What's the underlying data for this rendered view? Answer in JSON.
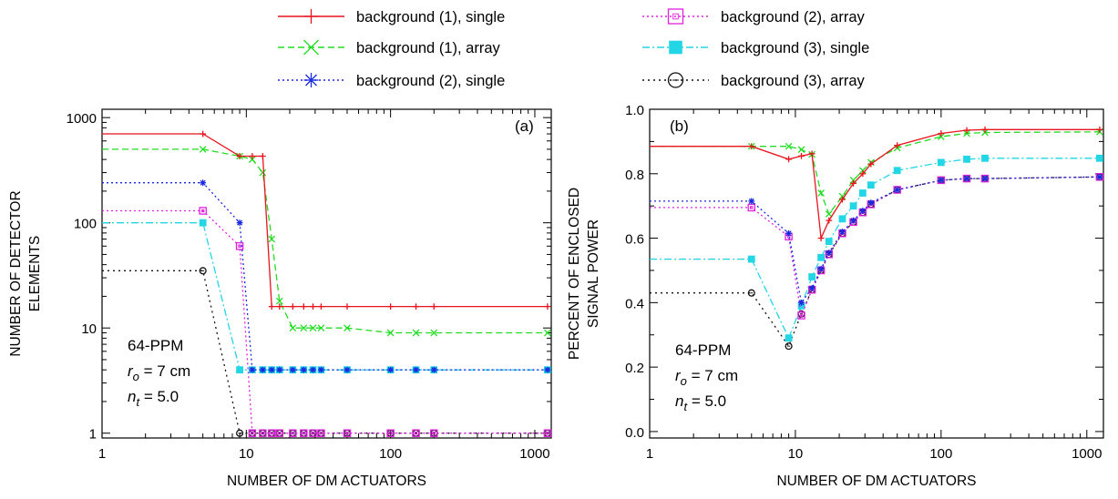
{
  "legend": [
    {
      "name": "background (1), single",
      "color": "#e8141e",
      "dash": "",
      "marker": "plus"
    },
    {
      "name": "background (1), array",
      "color": "#22dd22",
      "dash": "7,4",
      "marker": "x"
    },
    {
      "name": "background (2), single",
      "color": "#1a2ae0",
      "dash": "2,3",
      "marker": "star"
    },
    {
      "name": "background (2), array",
      "color": "#e020e0",
      "dash": "2,3",
      "marker": "square-open"
    },
    {
      "name": "background (3), single",
      "color": "#22d6e6",
      "dash": "8,3,2,3",
      "marker": "square-filled"
    },
    {
      "name": "background (3), array",
      "color": "#111111",
      "dash": "2,4",
      "marker": "circle-open"
    }
  ],
  "chart_data": [
    {
      "type": "line",
      "panel_label": "(a)",
      "xlabel": "NUMBER OF DM ACTUATORS",
      "ylabel": [
        "NUMBER OF DETECTOR",
        "ELEMENTS"
      ],
      "xscale": "log",
      "yscale": "log",
      "xlim": [
        1,
        1300
      ],
      "ylim": [
        0.9,
        1200
      ],
      "xticks": [
        1,
        10,
        100,
        1000
      ],
      "xtick_labels": [
        "1",
        "10",
        "100",
        "1000"
      ],
      "yticks": [
        1,
        10,
        100,
        1000
      ],
      "ytick_labels": [
        "1",
        "10",
        "100",
        "1000"
      ],
      "annotation": [
        "64-PPM",
        "r_o = 7 cm",
        "n_t = 5.0"
      ],
      "series": [
        {
          "name": "background (1), single",
          "x": [
            1,
            5,
            9,
            11,
            13,
            15,
            17,
            21,
            25,
            29,
            33,
            50,
            100,
            150,
            200,
            1225
          ],
          "y": [
            700,
            700,
            430,
            430,
            430,
            16,
            16,
            16,
            16,
            16,
            16,
            16,
            16,
            16,
            16,
            16
          ]
        },
        {
          "name": "background (1), array",
          "x": [
            1,
            5,
            9,
            11,
            13,
            15,
            17,
            21,
            25,
            29,
            33,
            50,
            100,
            150,
            200,
            1225
          ],
          "y": [
            500,
            500,
            430,
            400,
            300,
            70,
            18,
            10,
            10,
            10,
            10,
            10,
            9,
            9,
            9,
            9
          ]
        },
        {
          "name": "background (2), single",
          "x": [
            1,
            5,
            9,
            11,
            13,
            15,
            17,
            21,
            25,
            29,
            33,
            50,
            100,
            150,
            200,
            1225
          ],
          "y": [
            240,
            240,
            100,
            4,
            4,
            4,
            4,
            4,
            4,
            4,
            4,
            4,
            4,
            4,
            4,
            4
          ]
        },
        {
          "name": "background (2), array",
          "x": [
            1,
            5,
            9,
            11,
            13,
            15,
            17,
            21,
            25,
            29,
            33,
            50,
            100,
            150,
            200,
            1225
          ],
          "y": [
            130,
            130,
            60,
            1,
            1,
            1,
            1,
            1,
            1,
            1,
            1,
            1,
            1,
            1,
            1,
            1
          ]
        },
        {
          "name": "background (3), single",
          "x": [
            1,
            5,
            9,
            11,
            13,
            15,
            17,
            21,
            25,
            29,
            33,
            50,
            100,
            150,
            200,
            1225
          ],
          "y": [
            100,
            100,
            4,
            4,
            4,
            4,
            4,
            4,
            4,
            4,
            4,
            4,
            4,
            4,
            4,
            4
          ]
        },
        {
          "name": "background (3), array",
          "x": [
            1,
            5,
            9,
            11,
            13,
            15,
            17,
            21,
            25,
            29,
            33,
            50,
            100,
            150,
            200,
            1225
          ],
          "y": [
            35,
            35,
            1,
            1,
            1,
            1,
            1,
            1,
            1,
            1,
            1,
            1,
            1,
            1,
            1,
            1
          ]
        }
      ]
    },
    {
      "type": "line",
      "panel_label": "(b)",
      "xlabel": "NUMBER OF DM ACTUATORS",
      "ylabel": [
        "PERCENT OF ENCLOSED",
        "SIGNAL POWER"
      ],
      "xscale": "log",
      "yscale": "linear",
      "xlim": [
        1,
        1300
      ],
      "ylim": [
        -0.02,
        1.0
      ],
      "xticks": [
        1,
        10,
        100,
        1000
      ],
      "xtick_labels": [
        "1",
        "10",
        "100",
        "1000"
      ],
      "yticks": [
        0.0,
        0.2,
        0.4,
        0.6,
        0.8,
        1.0
      ],
      "ytick_labels": [
        "0.0",
        "0.2",
        "0.4",
        "0.6",
        "0.8",
        "1.0"
      ],
      "annotation": [
        "64-PPM",
        "r_o = 7 cm",
        "n_t = 5.0"
      ],
      "series": [
        {
          "name": "background (1), single",
          "x": [
            1,
            5,
            9,
            11,
            13,
            15,
            17,
            21,
            25,
            29,
            33,
            50,
            100,
            150,
            200,
            1225
          ],
          "y": [
            0.885,
            0.885,
            0.845,
            0.855,
            0.862,
            0.6,
            0.655,
            0.72,
            0.77,
            0.8,
            0.83,
            0.888,
            0.925,
            0.935,
            0.937,
            0.937
          ]
        },
        {
          "name": "background (1), array",
          "x": [
            1,
            5,
            9,
            11,
            13,
            15,
            17,
            21,
            25,
            29,
            33,
            50,
            100,
            150,
            200,
            1225
          ],
          "y": [
            0.885,
            0.885,
            0.885,
            0.875,
            0.86,
            0.74,
            0.675,
            0.73,
            0.78,
            0.81,
            0.835,
            0.88,
            0.915,
            0.925,
            0.928,
            0.93
          ]
        },
        {
          "name": "background (2), single",
          "x": [
            1,
            5,
            9,
            11,
            13,
            15,
            17,
            21,
            25,
            29,
            33,
            50,
            100,
            150,
            200,
            1225
          ],
          "y": [
            0.715,
            0.715,
            0.615,
            0.4,
            0.445,
            0.505,
            0.555,
            0.62,
            0.655,
            0.685,
            0.71,
            0.75,
            0.78,
            0.785,
            0.785,
            0.79
          ]
        },
        {
          "name": "background (2), array",
          "x": [
            1,
            5,
            9,
            11,
            13,
            15,
            17,
            21,
            25,
            29,
            33,
            50,
            100,
            150,
            200,
            1225
          ],
          "y": [
            0.695,
            0.695,
            0.605,
            0.36,
            0.44,
            0.5,
            0.55,
            0.615,
            0.65,
            0.68,
            0.705,
            0.75,
            0.78,
            0.785,
            0.785,
            0.79
          ]
        },
        {
          "name": "background (3), single",
          "x": [
            1,
            5,
            9,
            11,
            13,
            15,
            17,
            21,
            25,
            29,
            33,
            50,
            100,
            150,
            200,
            1225
          ],
          "y": [
            0.535,
            0.535,
            0.29,
            0.39,
            0.48,
            0.54,
            0.59,
            0.66,
            0.7,
            0.74,
            0.765,
            0.81,
            0.835,
            0.845,
            0.848,
            0.848
          ]
        },
        {
          "name": "background (3), array",
          "x": [
            1,
            5,
            9,
            11,
            13,
            15,
            17,
            21,
            25,
            29,
            33,
            50,
            100,
            150,
            200,
            1225
          ],
          "y": [
            0.43,
            0.43,
            0.265,
            0.365,
            0.44,
            0.5,
            0.55,
            0.615,
            0.65,
            0.68,
            0.705,
            0.75,
            0.78,
            0.785,
            0.785,
            0.79
          ]
        }
      ]
    }
  ]
}
